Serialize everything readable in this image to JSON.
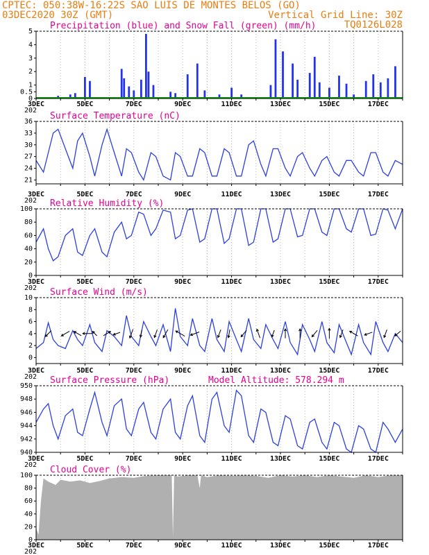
{
  "header": {
    "line1_left": "CPTEC:  050:38W-16:22S  SAO LUIS DE MONTES BELOS (GO)",
    "line2_left": "03DEC2020 30Z (GMT)",
    "line2_right": "Vertical Grid Line: 30Z",
    "line3_right": "TQ0126L028"
  },
  "colors": {
    "header_text": "#e87d12",
    "panel_title": "#e6008f",
    "line_series": "#2a3fe0",
    "precip_bars": "#2233ee",
    "snow_line": "#00a000",
    "cloud_fill": "#b0b0b0",
    "grid": "#999999"
  },
  "x_axis": {
    "date_labels": [
      "3DEC",
      "5DEC",
      "7DEC",
      "9DEC",
      "11DEC",
      "13DEC",
      "15DEC",
      "17DEC"
    ],
    "year_stub": "202"
  },
  "chart_data": [
    {
      "type": "bar",
      "title": "Precipitation (blue) and Snow Fall (green) (mm/h)",
      "ylim": [
        0,
        5
      ],
      "yticks": [
        "0",
        "0.5",
        "1",
        "2",
        "3",
        "4",
        "5"
      ],
      "series": [
        {
          "name": "Precipitation",
          "color": "blue",
          "x": [
            3.9,
            4.4,
            4.6,
            5.0,
            5.2,
            6.5,
            6.6,
            6.8,
            7.0,
            7.3,
            7.5,
            7.6,
            7.8,
            8.5,
            8.7,
            9.2,
            9.6,
            9.9,
            10.5,
            11.0,
            11.4,
            12.6,
            12.8,
            13.1,
            13.5,
            13.7,
            14.2,
            14.4,
            14.6,
            15.0,
            15.4,
            15.7,
            16.0,
            16.5,
            16.8,
            17.1,
            17.4,
            17.7
          ],
          "values": [
            0.2,
            0.3,
            0.4,
            1.6,
            1.3,
            2.2,
            1.5,
            0.9,
            0.6,
            1.4,
            4.8,
            2.0,
            1.0,
            0.5,
            0.4,
            1.8,
            2.6,
            0.6,
            0.3,
            0.8,
            0.3,
            1.0,
            4.4,
            3.5,
            2.6,
            1.4,
            1.9,
            3.1,
            1.2,
            0.8,
            1.7,
            1.1,
            0.3,
            1.3,
            1.8,
            1.2,
            1.5,
            2.4
          ]
        },
        {
          "name": "Snow Fall",
          "color": "green",
          "x": [
            3.0,
            18.0
          ],
          "values": [
            0,
            0
          ]
        }
      ]
    },
    {
      "type": "line",
      "title": "Surface Temperature (nC)",
      "ylim": [
        20,
        36
      ],
      "yticks": [
        21,
        24,
        27,
        30,
        33,
        36
      ],
      "x": [
        3.0,
        3.3,
        3.5,
        3.7,
        3.9,
        4.2,
        4.5,
        4.7,
        4.9,
        5.2,
        5.4,
        5.7,
        5.9,
        6.2,
        6.5,
        6.7,
        6.9,
        7.2,
        7.4,
        7.7,
        7.9,
        8.2,
        8.5,
        8.7,
        8.9,
        9.2,
        9.4,
        9.7,
        9.9,
        10.2,
        10.4,
        10.7,
        10.9,
        11.2,
        11.4,
        11.7,
        11.9,
        12.2,
        12.4,
        12.7,
        12.9,
        13.2,
        13.4,
        13.7,
        13.9,
        14.2,
        14.4,
        14.7,
        14.9,
        15.2,
        15.4,
        15.7,
        15.9,
        16.2,
        16.4,
        16.7,
        16.9,
        17.2,
        17.4,
        17.7,
        18.0
      ],
      "values": [
        26,
        23,
        28,
        33,
        34,
        29,
        24,
        31,
        33,
        27,
        22,
        30,
        34,
        28,
        22,
        29,
        28,
        23,
        21,
        28,
        27,
        22,
        21,
        28,
        27,
        22,
        22,
        29,
        28,
        22,
        22,
        29,
        28,
        22,
        22,
        30,
        31,
        25,
        22,
        29,
        29,
        24,
        22,
        27,
        28,
        24,
        22,
        26,
        27,
        23,
        22,
        26,
        26,
        23,
        22,
        28,
        28,
        23,
        22,
        26,
        25
      ]
    },
    {
      "type": "line",
      "title": "Relative Humidity (%)",
      "ylim": [
        0,
        100
      ],
      "yticks": [
        0,
        20,
        40,
        60,
        80,
        100
      ],
      "x": [
        3.0,
        3.3,
        3.5,
        3.7,
        3.9,
        4.2,
        4.5,
        4.7,
        4.9,
        5.2,
        5.4,
        5.7,
        5.9,
        6.2,
        6.5,
        6.7,
        6.9,
        7.2,
        7.4,
        7.7,
        7.9,
        8.2,
        8.5,
        8.7,
        8.9,
        9.2,
        9.4,
        9.7,
        9.9,
        10.2,
        10.4,
        10.7,
        10.9,
        11.2,
        11.4,
        11.7,
        11.9,
        12.2,
        12.4,
        12.7,
        12.9,
        13.2,
        13.4,
        13.7,
        13.9,
        14.2,
        14.4,
        14.7,
        14.9,
        15.2,
        15.4,
        15.7,
        15.9,
        16.2,
        16.4,
        16.7,
        16.9,
        17.2,
        17.4,
        17.7,
        18.0
      ],
      "values": [
        50,
        70,
        40,
        22,
        28,
        60,
        70,
        35,
        30,
        60,
        70,
        35,
        28,
        65,
        80,
        55,
        60,
        95,
        92,
        60,
        70,
        98,
        95,
        55,
        60,
        98,
        100,
        50,
        55,
        100,
        100,
        48,
        55,
        100,
        100,
        45,
        50,
        100,
        100,
        50,
        55,
        100,
        100,
        58,
        60,
        100,
        100,
        65,
        60,
        100,
        100,
        70,
        65,
        100,
        100,
        60,
        62,
        100,
        98,
        70,
        100
      ]
    },
    {
      "type": "line",
      "title": "Surface Wind (m/s)",
      "ylim": [
        -1,
        10
      ],
      "yticks": [
        0,
        2,
        4,
        6,
        8,
        10
      ],
      "x": [
        3.0,
        3.3,
        3.5,
        3.7,
        3.9,
        4.2,
        4.5,
        4.7,
        4.9,
        5.2,
        5.4,
        5.7,
        5.9,
        6.2,
        6.5,
        6.7,
        6.9,
        7.2,
        7.4,
        7.7,
        7.9,
        8.2,
        8.5,
        8.7,
        8.9,
        9.2,
        9.4,
        9.7,
        9.9,
        10.2,
        10.4,
        10.7,
        10.9,
        11.2,
        11.4,
        11.7,
        11.9,
        12.2,
        12.4,
        12.7,
        12.9,
        13.2,
        13.4,
        13.7,
        13.9,
        14.2,
        14.4,
        14.7,
        14.9,
        15.2,
        15.4,
        15.7,
        15.9,
        16.2,
        16.4,
        16.7,
        16.9,
        17.2,
        17.4,
        17.7,
        18.0
      ],
      "values": [
        1.5,
        2.5,
        5.8,
        3.0,
        2.0,
        1.5,
        4.5,
        3.0,
        2.0,
        5.5,
        2.5,
        1.0,
        4.5,
        3.5,
        2.0,
        7.0,
        3.5,
        2.0,
        6.0,
        3.5,
        2.0,
        5.5,
        1.0,
        8.2,
        3.5,
        2.0,
        6.5,
        2.0,
        1.0,
        6.5,
        3.0,
        1.0,
        6.0,
        3.0,
        1.0,
        6.5,
        3.0,
        1.5,
        5.5,
        3.0,
        1.5,
        6.0,
        2.5,
        0.5,
        5.5,
        3.0,
        1.0,
        6.0,
        2.5,
        0.8,
        5.5,
        2.5,
        0.5,
        5.5,
        2.5,
        0.5,
        6.0,
        2.5,
        1.0,
        4.0,
        2.5
      ],
      "wind_barbs": [
        {
          "day": 3.5,
          "speed": 4.0,
          "dir_deg": 225
        },
        {
          "day": 4.2,
          "speed": 4.5,
          "dir_deg": 240
        },
        {
          "day": 4.7,
          "speed": 4.0,
          "dir_deg": 300
        },
        {
          "day": 5.1,
          "speed": 4.5,
          "dir_deg": 270
        },
        {
          "day": 5.4,
          "speed": 3.0,
          "dir_deg": 315
        },
        {
          "day": 5.9,
          "speed": 4.0,
          "dir_deg": 60
        },
        {
          "day": 6.3,
          "speed": 3.5,
          "dir_deg": 250
        },
        {
          "day": 6.9,
          "speed": 4.5,
          "dir_deg": 200
        },
        {
          "day": 7.3,
          "speed": 3.5,
          "dir_deg": 190
        },
        {
          "day": 7.9,
          "speed": 4.0,
          "dir_deg": 200
        },
        {
          "day": 8.3,
          "speed": 4.5,
          "dir_deg": 210
        },
        {
          "day": 8.9,
          "speed": 5.0,
          "dir_deg": 300
        },
        {
          "day": 9.5,
          "speed": 4.5,
          "dir_deg": 250
        },
        {
          "day": 10.5,
          "speed": 4.0,
          "dir_deg": 200
        },
        {
          "day": 10.9,
          "speed": 4.0,
          "dir_deg": 190
        },
        {
          "day": 11.5,
          "speed": 4.0,
          "dir_deg": 220
        },
        {
          "day": 12.1,
          "speed": 4.5,
          "dir_deg": 340
        },
        {
          "day": 12.7,
          "speed": 3.5,
          "dir_deg": 200
        },
        {
          "day": 13.2,
          "speed": 4.5,
          "dir_deg": 0
        },
        {
          "day": 13.8,
          "speed": 4.5,
          "dir_deg": 0
        },
        {
          "day": 14.4,
          "speed": 4.0,
          "dir_deg": 220
        },
        {
          "day": 15.0,
          "speed": 5.0,
          "dir_deg": 0
        },
        {
          "day": 15.5,
          "speed": 4.0,
          "dir_deg": 200
        },
        {
          "day": 16.0,
          "speed": 4.5,
          "dir_deg": 300
        },
        {
          "day": 16.6,
          "speed": 4.0,
          "dir_deg": 250
        },
        {
          "day": 17.3,
          "speed": 4.0,
          "dir_deg": 200
        },
        {
          "day": 17.8,
          "speed": 3.5,
          "dir_deg": 230
        }
      ]
    },
    {
      "type": "line",
      "title": "Surface Pressure (hPa)",
      "annotation": "Model Altitude: 578.294  m",
      "ylim": [
        940,
        950
      ],
      "yticks": [
        940,
        942,
        944,
        946,
        948,
        950
      ],
      "x": [
        3.0,
        3.3,
        3.5,
        3.7,
        3.9,
        4.2,
        4.5,
        4.7,
        4.9,
        5.2,
        5.4,
        5.7,
        5.9,
        6.2,
        6.5,
        6.7,
        6.9,
        7.2,
        7.4,
        7.7,
        7.9,
        8.2,
        8.5,
        8.7,
        8.9,
        9.2,
        9.4,
        9.7,
        9.9,
        10.2,
        10.4,
        10.7,
        10.9,
        11.2,
        11.4,
        11.7,
        11.9,
        12.2,
        12.4,
        12.7,
        12.9,
        13.2,
        13.4,
        13.7,
        13.9,
        14.2,
        14.4,
        14.7,
        14.9,
        15.2,
        15.4,
        15.7,
        15.9,
        16.2,
        16.4,
        16.7,
        16.9,
        17.2,
        17.4,
        17.7,
        18.0
      ],
      "values": [
        944.5,
        946.5,
        947.3,
        944.0,
        942.0,
        945.5,
        946.5,
        943.0,
        942.5,
        946.5,
        949.0,
        944.5,
        942.5,
        947.0,
        948.0,
        943.5,
        942.5,
        946.5,
        947.5,
        943.0,
        942.0,
        946.5,
        948.0,
        943.0,
        942.0,
        947.0,
        948.5,
        942.5,
        941.5,
        948.0,
        949.0,
        944.0,
        943.0,
        949.3,
        948.5,
        942.5,
        941.5,
        946.5,
        946.0,
        941.5,
        941.0,
        945.5,
        945.0,
        941.0,
        940.5,
        944.5,
        945.0,
        941.5,
        940.5,
        944.5,
        944.0,
        940.5,
        940.0,
        944.0,
        943.5,
        940.5,
        940.0,
        944.5,
        943.5,
        941.5,
        943.5
      ]
    },
    {
      "type": "area",
      "title": "Cloud Cover (%)",
      "ylim": [
        0,
        100
      ],
      "yticks": [
        0,
        20,
        40,
        60,
        80,
        100
      ],
      "x": [
        3.0,
        3.1,
        3.2,
        3.3,
        3.5,
        3.8,
        4.0,
        4.4,
        4.8,
        5.2,
        5.6,
        6.0,
        6.5,
        7.0,
        7.5,
        8.0,
        8.4,
        8.55,
        8.6,
        8.65,
        8.8,
        9.2,
        9.6,
        9.7,
        9.75,
        10.0,
        10.5,
        11.0,
        11.5,
        12.0,
        12.5,
        13.0,
        13.5,
        14.0,
        14.5,
        15.0,
        15.5,
        16.0,
        16.5,
        17.0,
        17.5,
        18.0
      ],
      "values": [
        18,
        8,
        60,
        95,
        90,
        85,
        93,
        90,
        92,
        88,
        91,
        95,
        97,
        96,
        99,
        100,
        100,
        100,
        5,
        100,
        98,
        100,
        100,
        80,
        100,
        97,
        100,
        99,
        100,
        99,
        96,
        100,
        98,
        100,
        97,
        100,
        98,
        96,
        100,
        97,
        100,
        100
      ]
    }
  ]
}
